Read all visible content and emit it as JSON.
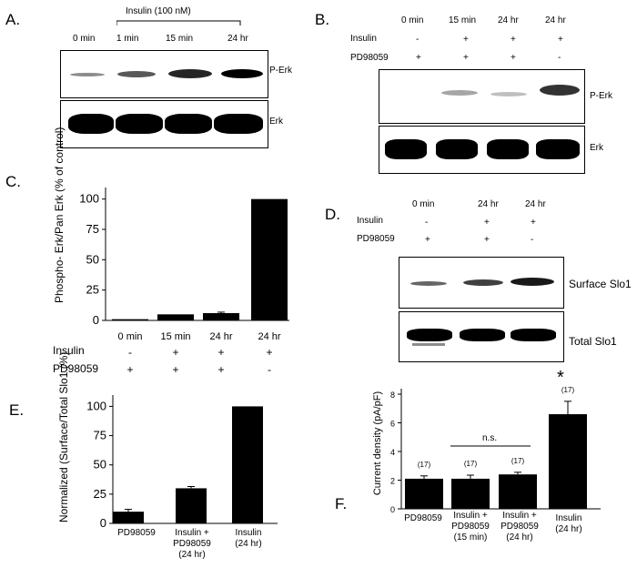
{
  "panels": {
    "A": {
      "label": "A.",
      "treatment": "Insulin (100 nM)",
      "lanes": [
        "0 min",
        "1 min",
        "15 min",
        "24 hr"
      ],
      "blot_labels": [
        "P-Erk",
        "Erk"
      ]
    },
    "B": {
      "label": "B.",
      "lanes": [
        "0 min",
        "15 min",
        "24 hr",
        "24 hr"
      ],
      "rows": [
        {
          "name": "Insulin",
          "marks": [
            "-",
            "+",
            "+",
            "+"
          ]
        },
        {
          "name": "PD98059",
          "marks": [
            "+",
            "+",
            "+",
            "-"
          ]
        }
      ],
      "blot_labels": [
        "P-Erk",
        "Erk"
      ]
    },
    "C": {
      "label": "C.",
      "rows": [
        {
          "name": "Insulin",
          "marks": [
            "-",
            "+",
            "+",
            "+"
          ]
        },
        {
          "name": "PD98059",
          "marks": [
            "+",
            "+",
            "+",
            "-"
          ]
        }
      ]
    },
    "D": {
      "label": "D.",
      "lanes": [
        "0 min",
        "24 hr",
        "24 hr"
      ],
      "rows": [
        {
          "name": "Insulin",
          "marks": [
            "-",
            "+",
            "+"
          ]
        },
        {
          "name": "PD98059",
          "marks": [
            "+",
            "+",
            "-"
          ]
        }
      ],
      "blot_labels": [
        "Surface Slo1",
        "Total Slo1"
      ]
    },
    "E": {
      "label": "E."
    },
    "F": {
      "label": "F.",
      "ns_label": "n.s.",
      "sig_mark": "*"
    }
  },
  "chart_data": [
    {
      "panel": "C",
      "type": "bar",
      "categories": [
        "0 min",
        "15 min",
        "24 hr",
        "24 hr"
      ],
      "values": [
        1,
        5,
        6,
        100
      ],
      "errors": [
        0,
        0,
        0.8,
        0
      ],
      "ylabel": "Phospho- Erk/Pan Erk (% of control)",
      "ylim": [
        0,
        105
      ],
      "yticks": [
        0,
        25,
        50,
        75,
        100
      ],
      "bar_color": "#000000"
    },
    {
      "panel": "E",
      "type": "bar",
      "categories": [
        "PD98059",
        "Insulin + PD98059 (24 hr)",
        "Insulin (24 hr)"
      ],
      "values": [
        10,
        30,
        100
      ],
      "errors": [
        2,
        1.5,
        0
      ],
      "ylabel": "Normalized (Surface/Total Slo1 (%)",
      "ylim": [
        0,
        105
      ],
      "yticks": [
        0,
        25,
        50,
        75,
        100
      ],
      "bar_color": "#000000"
    },
    {
      "panel": "F",
      "type": "bar",
      "categories": [
        "PD98059",
        "Insulin + PD98059 (15 min)",
        "Insulin + PD98059 (24 hr)",
        "Insulin (24 hr)"
      ],
      "values": [
        2.1,
        2.1,
        2.4,
        6.6
      ],
      "errors": [
        0.2,
        0.25,
        0.15,
        0.9
      ],
      "n_labels": [
        "(17)",
        "(17)",
        "(17)",
        "(17)"
      ],
      "ylabel": "Current density (pA/pF)",
      "ylim": [
        0,
        8
      ],
      "yticks": [
        0,
        2,
        4,
        6,
        8
      ],
      "bar_color": "#000000"
    }
  ]
}
